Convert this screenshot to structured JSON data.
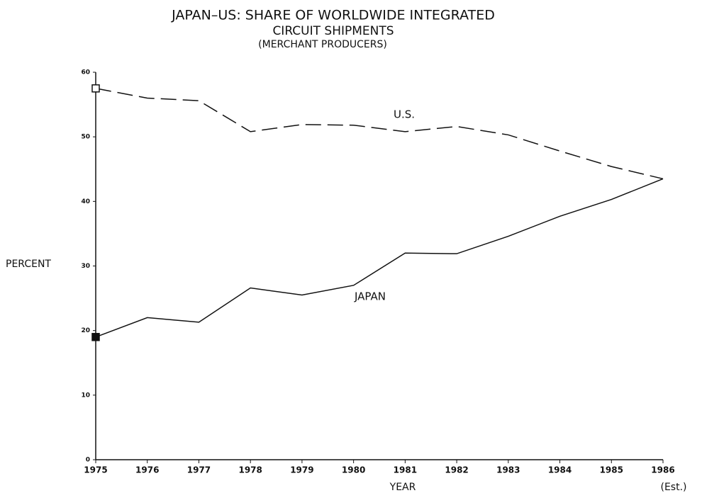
{
  "chart_data": {
    "type": "line",
    "title": [
      "JAPAN–US: SHARE OF WORLDWIDE INTEGRATED",
      "CIRCUIT SHIPMENTS"
    ],
    "subtitle": "(MERCHANT PRODUCERS)",
    "xlabel": "YEAR",
    "ylabel": "PERCENT",
    "annotation": "(Est.)",
    "categories": [
      "1975",
      "1976",
      "1977",
      "1978",
      "1979",
      "1980",
      "1981",
      "1982",
      "1983",
      "1984",
      "1985",
      "1986"
    ],
    "series": [
      {
        "name": "U.S.",
        "color": "#111111",
        "style": "dashed",
        "marker": "open-square",
        "values": [
          57.5,
          56,
          55.6,
          50.8,
          51.9,
          51.8,
          50.8,
          51.6,
          50.3,
          47.8,
          45.4,
          43.5
        ]
      },
      {
        "name": "JAPAN",
        "color": "#111111",
        "style": "solid",
        "marker": "filled-square",
        "values": [
          19,
          22,
          21.3,
          26.6,
          25.5,
          27,
          32,
          31.9,
          34.6,
          37.7,
          40.3,
          43.5
        ]
      }
    ],
    "ylim": [
      0,
      60
    ],
    "yticks": [
      0,
      10,
      20,
      30,
      40,
      50,
      60
    ],
    "grid": false
  }
}
